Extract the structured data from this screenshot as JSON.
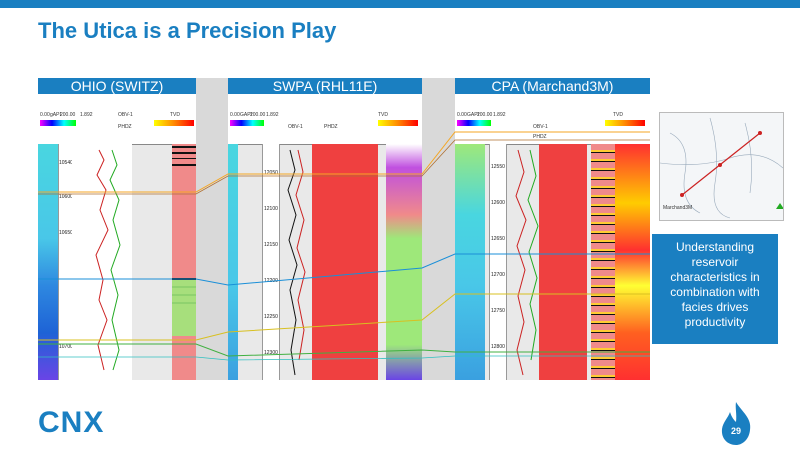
{
  "slide": {
    "title": "The Utica is a Precision Play",
    "page_number": "29",
    "accent_color": "#1a7fc1"
  },
  "panels": [
    {
      "title": "OHIO (SWITZ)",
      "header_values": [
        "0.00",
        "gAPI",
        "200.00",
        "1.892",
        "OBV-1",
        "PHDZ",
        "TVD"
      ],
      "depths": [
        "10540",
        "10600",
        "10650",
        "10700"
      ]
    },
    {
      "title": "SWPA (RHL11E)",
      "header_values": [
        "0.00",
        "GAPI",
        "200.00",
        "1.892",
        "OBV-1",
        "PHDZ",
        "TVD"
      ],
      "depths": [
        "12050",
        "12100",
        "12150",
        "12200",
        "12250",
        "12300"
      ]
    },
    {
      "title": "CPA (Marchand3M)",
      "header_values": [
        "0.00",
        "GAPI",
        "200.00",
        "1.892",
        "OBV-1",
        "PHDZ",
        "TVD"
      ],
      "depths": [
        "12550",
        "12600",
        "12650",
        "12700",
        "12750",
        "12800"
      ]
    }
  ],
  "map": {
    "label": "Marchand3M"
  },
  "callout": {
    "lines": [
      "Understanding",
      "reservoir",
      "characteristics in",
      "combination with",
      "facies drives",
      "productivity"
    ]
  },
  "logo": {
    "text": "CNX"
  }
}
